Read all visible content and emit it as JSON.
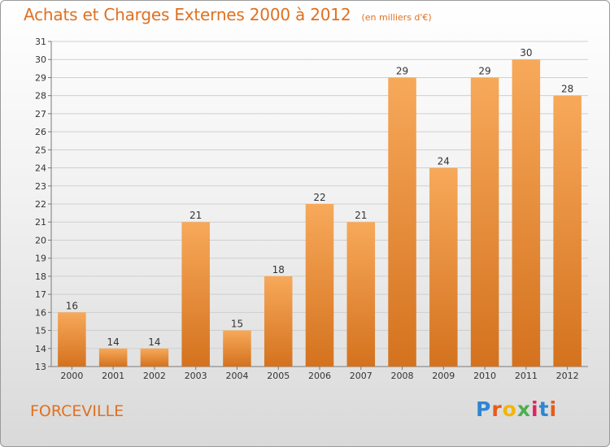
{
  "header": {
    "title": "Achats et Charges Externes 2000 à 2012",
    "subtitle": "(en milliers d'€)"
  },
  "footer": {
    "place": "FORCEVILLE",
    "logo": {
      "text": "Proxiti",
      "letter_colors": [
        "#2e86d4",
        "#e85a1a",
        "#f2b705",
        "#4caf50",
        "#e0245e",
        "#2e86d4",
        "#e85a1a"
      ]
    }
  },
  "colors": {
    "bar_top": "#f7a95a",
    "bar_bottom": "#d4721e",
    "grid": "#cfcfcf",
    "axis": "#7a7a7a",
    "text": "#333333",
    "accent": "#e07020"
  },
  "chart_data": {
    "type": "bar",
    "title": "Achats et Charges Externes 2000 à 2012",
    "subtitle": "(en milliers d'€)",
    "categories": [
      "2000",
      "2001",
      "2002",
      "2003",
      "2004",
      "2005",
      "2006",
      "2007",
      "2008",
      "2009",
      "2010",
      "2011",
      "2012"
    ],
    "values": [
      16,
      14,
      14,
      21,
      15,
      18,
      22,
      21,
      29,
      24,
      29,
      30,
      28
    ],
    "ylim": [
      13,
      31
    ],
    "yticks": [
      13,
      14,
      15,
      16,
      17,
      18,
      19,
      20,
      21,
      22,
      23,
      24,
      25,
      26,
      27,
      28,
      29,
      30,
      31
    ],
    "grid": true,
    "data_labels": true
  }
}
